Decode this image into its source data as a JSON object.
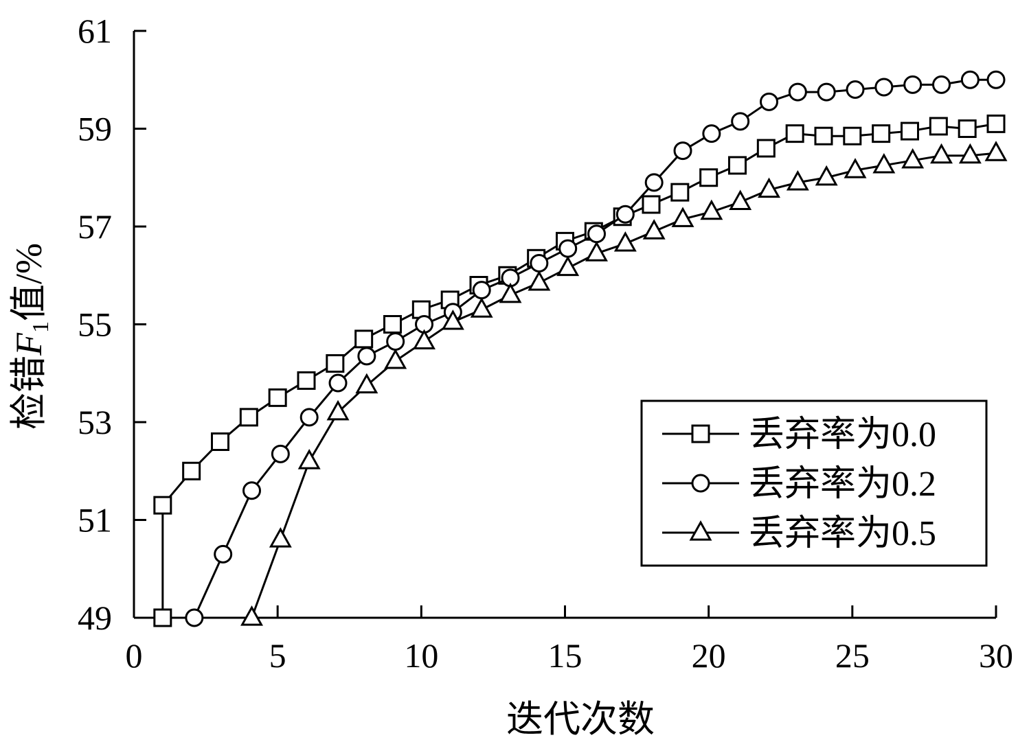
{
  "chart_data": {
    "type": "line",
    "xlabel": "迭代次数",
    "ylabel_prefix": "检错",
    "ylabel_var": "F",
    "ylabel_sub": "1",
    "ylabel_suffix": "值/%",
    "xlim": [
      0,
      30
    ],
    "ylim": [
      49,
      61
    ],
    "xticks": [
      0,
      5,
      10,
      15,
      20,
      25,
      30
    ],
    "yticks": [
      49,
      51,
      53,
      55,
      57,
      59,
      61
    ],
    "grid": false,
    "legend_position": "bottom-right",
    "series": [
      {
        "name": "丢弃率为0.0",
        "marker": "square",
        "x": [
          1,
          1,
          2,
          3,
          4,
          5,
          6,
          7,
          8,
          9,
          10,
          11,
          12,
          13,
          14,
          15,
          16,
          17,
          18,
          19,
          20,
          21,
          22,
          23,
          24,
          25,
          26,
          27,
          28,
          29,
          30
        ],
        "y": [
          49.0,
          51.3,
          52.0,
          52.6,
          53.1,
          53.5,
          53.85,
          54.2,
          54.7,
          55.0,
          55.3,
          55.5,
          55.8,
          56.0,
          56.35,
          56.7,
          56.9,
          57.2,
          57.45,
          57.7,
          58.0,
          58.25,
          58.6,
          58.9,
          58.85,
          58.85,
          58.9,
          58.95,
          59.05,
          59.0,
          59.1
        ]
      },
      {
        "name": "丢弃率为0.2",
        "marker": "circle",
        "x": [
          2.1,
          3.1,
          4.1,
          5.1,
          6.1,
          7.1,
          8.1,
          9.1,
          10.1,
          11.1,
          12.1,
          13.1,
          14.1,
          15.1,
          16.1,
          17.1,
          18.1,
          19.1,
          20.1,
          21.1,
          22.1,
          23.1,
          24.1,
          25.1,
          26.1,
          27.1,
          28.1,
          29.1,
          30.0
        ],
        "y": [
          49.0,
          50.3,
          51.6,
          52.35,
          53.1,
          53.8,
          54.35,
          54.65,
          55.0,
          55.25,
          55.7,
          55.95,
          56.25,
          56.55,
          56.85,
          57.25,
          57.9,
          58.55,
          58.9,
          59.15,
          59.55,
          59.75,
          59.75,
          59.8,
          59.85,
          59.9,
          59.9,
          60.0,
          60.0
        ]
      },
      {
        "name": "丢弃率为0.5",
        "marker": "triangle",
        "x": [
          4.1,
          5.1,
          6.1,
          7.1,
          8.1,
          9.1,
          10.1,
          11.1,
          12.1,
          13.1,
          14.1,
          15.1,
          16.1,
          17.1,
          18.1,
          19.1,
          20.1,
          21.1,
          22.1,
          23.1,
          24.1,
          25.1,
          26.1,
          27.1,
          28.1,
          29.1,
          30.0
        ],
        "y": [
          49.0,
          50.6,
          52.2,
          53.2,
          53.75,
          54.25,
          54.65,
          55.05,
          55.3,
          55.6,
          55.85,
          56.15,
          56.45,
          56.65,
          56.9,
          57.15,
          57.3,
          57.5,
          57.75,
          57.9,
          58.0,
          58.15,
          58.25,
          58.35,
          58.45,
          58.45,
          58.5
        ]
      }
    ]
  }
}
